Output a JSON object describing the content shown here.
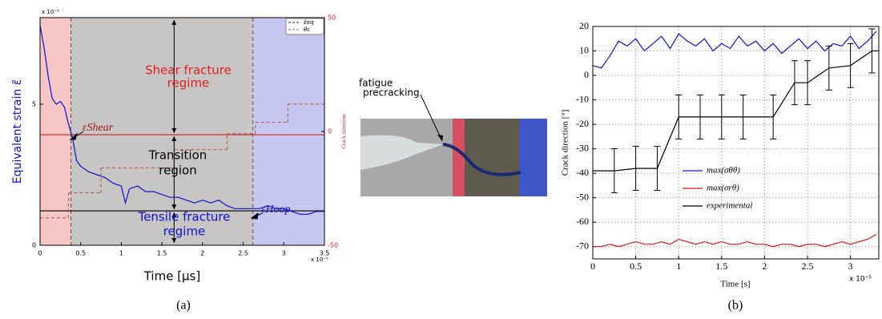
{
  "chart_data": [
    {
      "type": "line",
      "caption": "(a)",
      "xlabel": "Time [μs]",
      "ylabel": "Equivalent strain ε̃",
      "y2label": "Crack direction",
      "xmultiplier": "x 10⁻⁵",
      "ymultiplier": "x 10⁻³",
      "xlim": [
        0,
        3.5
      ],
      "xticks": [
        0,
        0.5,
        1,
        1.5,
        2,
        2.5,
        3,
        3.5
      ],
      "ylim": [
        0,
        8.07
      ],
      "yticks": [
        0,
        5
      ],
      "y2lim": [
        -50,
        50
      ],
      "y2ticks": [
        -50,
        0,
        50
      ],
      "grid": false,
      "regions": [
        {
          "xlim": [
            0,
            0.38
          ],
          "color": "#f7c6c6"
        },
        {
          "xlim": [
            0.38,
            2.62
          ],
          "color": "#c8c6c4"
        },
        {
          "xlim": [
            2.62,
            3.5
          ],
          "color": "#c6c8f2"
        }
      ],
      "hlines": [
        {
          "value": 3.92,
          "color": "#d22020"
        },
        {
          "value": 1.22,
          "color": "#000000"
        }
      ],
      "series": [
        {
          "name": "ε̃eq",
          "color": "#1010d0",
          "dash": false,
          "x": [
            0,
            0.05,
            0.1,
            0.15,
            0.2,
            0.25,
            0.3,
            0.35,
            0.4,
            0.45,
            0.5,
            0.6,
            0.7,
            0.8,
            0.9,
            1.0,
            1.05,
            1.1,
            1.2,
            1.3,
            1.4,
            1.5,
            1.6,
            1.7,
            1.8,
            1.9,
            2.0,
            2.1,
            2.2,
            2.3,
            2.4,
            2.5,
            2.6,
            2.7,
            2.8,
            2.9,
            3.0,
            3.1,
            3.2,
            3.3,
            3.4,
            3.5
          ],
          "values": [
            7.8,
            7.0,
            6.0,
            5.2,
            5.0,
            5.1,
            4.9,
            4.3,
            3.8,
            3.0,
            2.8,
            2.6,
            2.5,
            2.4,
            2.2,
            2.1,
            1.5,
            2.0,
            2.1,
            1.9,
            1.9,
            1.8,
            1.7,
            1.7,
            1.6,
            1.5,
            1.6,
            1.5,
            1.6,
            1.4,
            1.3,
            1.3,
            1.3,
            1.3,
            1.4,
            1.3,
            1.3,
            1.2,
            1.1,
            1.1,
            1.2,
            1.2
          ]
        },
        {
          "name": "θc",
          "color": "#b05050",
          "dash": true,
          "step": true,
          "axis": "y2",
          "x": [
            0,
            0.35,
            0.75,
            1.65,
            2.3,
            2.65,
            3.05,
            3.5
          ],
          "values": [
            -38,
            -27,
            -16,
            -8,
            -1,
            4,
            12,
            12
          ]
        }
      ],
      "legend": "upper right",
      "annotations": [
        {
          "lines": [
            "Shear fracture",
            "regime"
          ],
          "color": "#e02020"
        },
        {
          "lines": [
            "Transition",
            "region"
          ],
          "color": "#000000"
        },
        {
          "lines": [
            "Tensile fracture",
            "regime"
          ],
          "color": "#1010d0"
        },
        {
          "lines": [
            "εShear"
          ],
          "color": "#a01818"
        },
        {
          "lines": [
            "εHoop"
          ],
          "color": "#1010d0"
        }
      ]
    },
    {
      "type": "line",
      "caption": "(b)",
      "xlabel": "Time [s]",
      "ylabel": "Crack direction [°]",
      "xmultiplier": "x 10⁻⁵",
      "xlim": [
        0,
        3.33
      ],
      "xticks": [
        0,
        0.5,
        1,
        1.5,
        2,
        2.5,
        3
      ],
      "ylim": [
        -75,
        20
      ],
      "yticks": [
        -70,
        -60,
        -50,
        -40,
        -30,
        -20,
        -10,
        0,
        10,
        20
      ],
      "grid": true,
      "x": [
        0,
        0.1,
        0.2,
        0.3,
        0.4,
        0.5,
        0.6,
        0.7,
        0.8,
        0.9,
        1.0,
        1.1,
        1.2,
        1.3,
        1.4,
        1.5,
        1.6,
        1.7,
        1.8,
        1.9,
        2.0,
        2.1,
        2.2,
        2.3,
        2.4,
        2.5,
        2.6,
        2.7,
        2.8,
        2.9,
        3.0,
        3.1,
        3.2,
        3.3
      ],
      "series": [
        {
          "name": "max(σθθ)",
          "color": "#1010d0",
          "values": [
            4,
            3,
            8,
            14,
            12,
            15,
            10,
            13,
            16,
            11,
            17,
            14,
            12,
            15,
            10,
            13,
            11,
            16,
            12,
            14,
            10,
            13,
            9,
            12,
            15,
            11,
            14,
            10,
            13,
            12,
            16,
            11,
            14,
            18
          ]
        },
        {
          "name": "max(σrθ)",
          "color": "#e01010",
          "values": [
            -70,
            -70,
            -69,
            -70,
            -69,
            -68,
            -69,
            -69,
            -68,
            -69,
            -67,
            -68,
            -69,
            -68,
            -69,
            -68,
            -69,
            -69,
            -68,
            -69,
            -69,
            -70,
            -69,
            -69,
            -70,
            -69,
            -69,
            -70,
            -69,
            -68,
            -69,
            -68,
            -67,
            -65
          ]
        },
        {
          "name": "experimental",
          "color": "#000000",
          "x": [
            0,
            0.25,
            0.5,
            0.75,
            1.0,
            1.25,
            1.5,
            1.75,
            2.1,
            2.35,
            2.5,
            2.75,
            3.0,
            3.25,
            3.33
          ],
          "values": [
            -39,
            -39,
            -38,
            -38,
            -17,
            -17,
            -17,
            -17,
            -17,
            -3,
            -3,
            3,
            4,
            10,
            10
          ],
          "errors": [
            null,
            9,
            9,
            9,
            9,
            9,
            9,
            9,
            9,
            9,
            9,
            9,
            9,
            9,
            null
          ]
        }
      ],
      "legend": "lower right"
    }
  ],
  "photo": {
    "label": [
      "fatigue",
      "precracking"
    ]
  }
}
